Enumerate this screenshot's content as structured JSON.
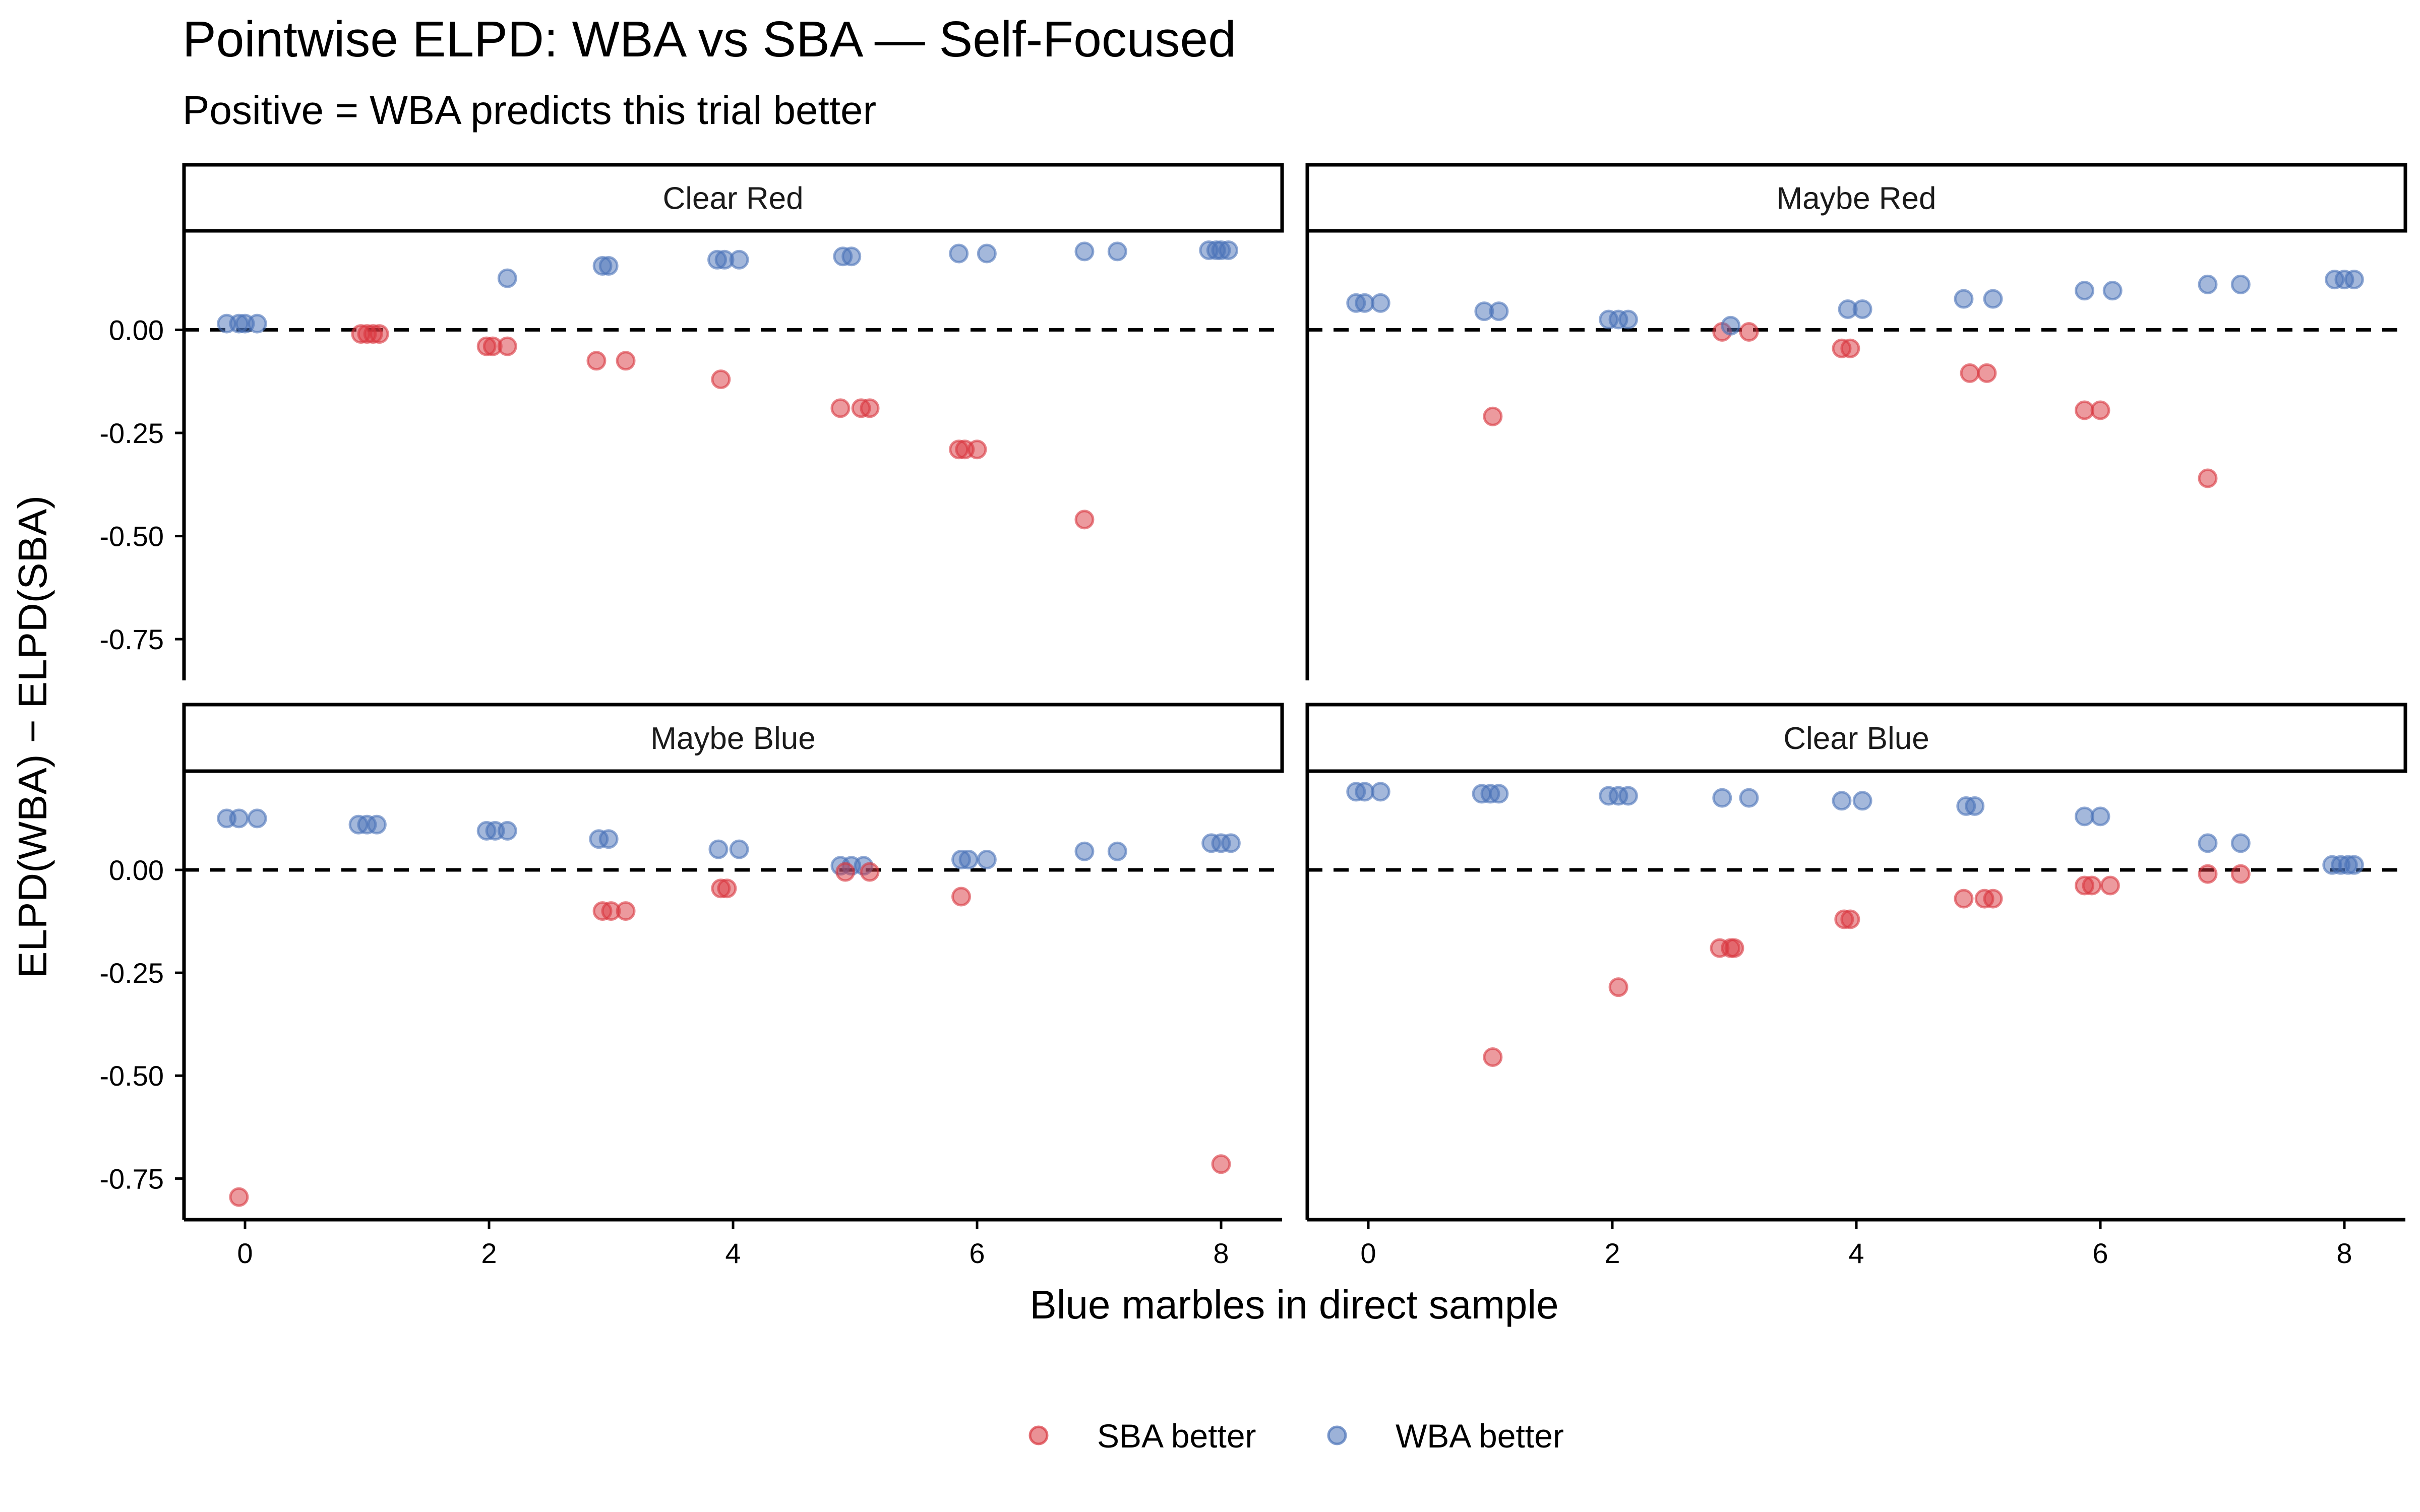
{
  "chart_data": {
    "type": "scatter",
    "title": "Pointwise ELPD: WBA vs SBA — Self-Focused",
    "subtitle": "Positive = WBA predicts this trial better",
    "xlabel": "Blue marbles in direct sample",
    "ylabel": "ELPD(WBA) − ELPD(SBA)",
    "xlim": [
      -0.5,
      8.5
    ],
    "ylim": [
      -0.85,
      0.24
    ],
    "x_ticks": [
      0,
      2,
      4,
      6,
      8
    ],
    "x_tick_labels": [
      "0",
      "2",
      "4",
      "6",
      "8"
    ],
    "y_ticks": [
      0,
      -0.25,
      -0.5,
      -0.75
    ],
    "y_tick_labels": [
      "0.00",
      "-0.25",
      "-0.50",
      "-0.75"
    ],
    "reference_line": {
      "y": 0,
      "style": "dashed"
    },
    "grid": false,
    "legend": {
      "position": "bottom",
      "entries": [
        {
          "label": "SBA better",
          "color": "#d62728"
        },
        {
          "label": "WBA better",
          "color": "#4472c4"
        }
      ]
    },
    "colors": {
      "SBA better": "#d9363e",
      "WBA better": "#4a72b8"
    },
    "panels": [
      {
        "name": "Clear Red",
        "points": [
          {
            "x": -0.15,
            "y": 0.015,
            "g": "WBA better"
          },
          {
            "x": -0.05,
            "y": 0.015,
            "g": "WBA better"
          },
          {
            "x": 0.0,
            "y": 0.015,
            "g": "WBA better"
          },
          {
            "x": 0.1,
            "y": 0.015,
            "g": "WBA better"
          },
          {
            "x": 0.95,
            "y": -0.01,
            "g": "SBA better"
          },
          {
            "x": 1.0,
            "y": -0.01,
            "g": "SBA better"
          },
          {
            "x": 1.05,
            "y": -0.01,
            "g": "SBA better"
          },
          {
            "x": 1.1,
            "y": -0.01,
            "g": "SBA better"
          },
          {
            "x": 1.98,
            "y": -0.04,
            "g": "SBA better"
          },
          {
            "x": 2.03,
            "y": -0.04,
            "g": "SBA better"
          },
          {
            "x": 2.15,
            "y": -0.04,
            "g": "SBA better"
          },
          {
            "x": 2.15,
            "y": 0.125,
            "g": "WBA better"
          },
          {
            "x": 2.88,
            "y": -0.075,
            "g": "SBA better"
          },
          {
            "x": 3.12,
            "y": -0.075,
            "g": "SBA better"
          },
          {
            "x": 2.93,
            "y": 0.155,
            "g": "WBA better"
          },
          {
            "x": 2.98,
            "y": 0.155,
            "g": "WBA better"
          },
          {
            "x": 3.9,
            "y": -0.12,
            "g": "SBA better"
          },
          {
            "x": 3.87,
            "y": 0.17,
            "g": "WBA better"
          },
          {
            "x": 3.93,
            "y": 0.17,
            "g": "WBA better"
          },
          {
            "x": 4.05,
            "y": 0.17,
            "g": "WBA better"
          },
          {
            "x": 4.88,
            "y": -0.19,
            "g": "SBA better"
          },
          {
            "x": 5.05,
            "y": -0.19,
            "g": "SBA better"
          },
          {
            "x": 5.12,
            "y": -0.19,
            "g": "SBA better"
          },
          {
            "x": 4.9,
            "y": 0.178,
            "g": "WBA better"
          },
          {
            "x": 4.97,
            "y": 0.178,
            "g": "WBA better"
          },
          {
            "x": 5.85,
            "y": -0.29,
            "g": "SBA better"
          },
          {
            "x": 5.9,
            "y": -0.29,
            "g": "SBA better"
          },
          {
            "x": 6.0,
            "y": -0.29,
            "g": "SBA better"
          },
          {
            "x": 5.85,
            "y": 0.185,
            "g": "WBA better"
          },
          {
            "x": 6.08,
            "y": 0.185,
            "g": "WBA better"
          },
          {
            "x": 6.88,
            "y": -0.46,
            "g": "SBA better"
          },
          {
            "x": 6.88,
            "y": 0.19,
            "g": "WBA better"
          },
          {
            "x": 7.15,
            "y": 0.19,
            "g": "WBA better"
          },
          {
            "x": 7.9,
            "y": 0.193,
            "g": "WBA better"
          },
          {
            "x": 7.96,
            "y": 0.193,
            "g": "WBA better"
          },
          {
            "x": 8.0,
            "y": 0.193,
            "g": "WBA better"
          },
          {
            "x": 8.06,
            "y": 0.193,
            "g": "WBA better"
          }
        ]
      },
      {
        "name": "Maybe Red",
        "points": [
          {
            "x": -0.1,
            "y": 0.065,
            "g": "WBA better"
          },
          {
            "x": -0.03,
            "y": 0.065,
            "g": "WBA better"
          },
          {
            "x": 0.1,
            "y": 0.065,
            "g": "WBA better"
          },
          {
            "x": 0.95,
            "y": 0.045,
            "g": "WBA better"
          },
          {
            "x": 1.07,
            "y": 0.045,
            "g": "WBA better"
          },
          {
            "x": 1.02,
            "y": -0.21,
            "g": "SBA better"
          },
          {
            "x": 1.97,
            "y": 0.025,
            "g": "WBA better"
          },
          {
            "x": 2.05,
            "y": 0.025,
            "g": "WBA better"
          },
          {
            "x": 2.13,
            "y": 0.025,
            "g": "WBA better"
          },
          {
            "x": 2.9,
            "y": -0.005,
            "g": "SBA better"
          },
          {
            "x": 2.97,
            "y": 0.01,
            "g": "WBA better"
          },
          {
            "x": 3.12,
            "y": -0.005,
            "g": "SBA better"
          },
          {
            "x": 3.88,
            "y": -0.045,
            "g": "SBA better"
          },
          {
            "x": 3.95,
            "y": -0.045,
            "g": "SBA better"
          },
          {
            "x": 3.93,
            "y": 0.05,
            "g": "WBA better"
          },
          {
            "x": 4.05,
            "y": 0.05,
            "g": "WBA better"
          },
          {
            "x": 4.88,
            "y": 0.075,
            "g": "WBA better"
          },
          {
            "x": 5.12,
            "y": 0.075,
            "g": "WBA better"
          },
          {
            "x": 4.93,
            "y": -0.105,
            "g": "SBA better"
          },
          {
            "x": 5.07,
            "y": -0.105,
            "g": "SBA better"
          },
          {
            "x": 5.87,
            "y": 0.095,
            "g": "WBA better"
          },
          {
            "x": 6.1,
            "y": 0.095,
            "g": "WBA better"
          },
          {
            "x": 5.87,
            "y": -0.195,
            "g": "SBA better"
          },
          {
            "x": 6.0,
            "y": -0.195,
            "g": "SBA better"
          },
          {
            "x": 6.88,
            "y": 0.11,
            "g": "WBA better"
          },
          {
            "x": 7.15,
            "y": 0.11,
            "g": "WBA better"
          },
          {
            "x": 6.88,
            "y": -0.36,
            "g": "SBA better"
          },
          {
            "x": 7.92,
            "y": 0.122,
            "g": "WBA better"
          },
          {
            "x": 8.0,
            "y": 0.122,
            "g": "WBA better"
          },
          {
            "x": 8.08,
            "y": 0.122,
            "g": "WBA better"
          }
        ]
      },
      {
        "name": "Maybe Blue",
        "points": [
          {
            "x": -0.15,
            "y": 0.125,
            "g": "WBA better"
          },
          {
            "x": -0.05,
            "y": 0.125,
            "g": "WBA better"
          },
          {
            "x": 0.1,
            "y": 0.125,
            "g": "WBA better"
          },
          {
            "x": -0.05,
            "y": -0.795,
            "g": "SBA better"
          },
          {
            "x": 0.93,
            "y": 0.11,
            "g": "WBA better"
          },
          {
            "x": 1.0,
            "y": 0.11,
            "g": "WBA better"
          },
          {
            "x": 1.08,
            "y": 0.11,
            "g": "WBA better"
          },
          {
            "x": 1.98,
            "y": 0.095,
            "g": "WBA better"
          },
          {
            "x": 2.05,
            "y": 0.095,
            "g": "WBA better"
          },
          {
            "x": 2.15,
            "y": 0.095,
            "g": "WBA better"
          },
          {
            "x": 2.9,
            "y": 0.075,
            "g": "WBA better"
          },
          {
            "x": 2.98,
            "y": 0.075,
            "g": "WBA better"
          },
          {
            "x": 2.93,
            "y": -0.1,
            "g": "SBA better"
          },
          {
            "x": 3.0,
            "y": -0.1,
            "g": "SBA better"
          },
          {
            "x": 3.12,
            "y": -0.1,
            "g": "SBA better"
          },
          {
            "x": 3.88,
            "y": 0.05,
            "g": "WBA better"
          },
          {
            "x": 4.05,
            "y": 0.05,
            "g": "WBA better"
          },
          {
            "x": 3.9,
            "y": -0.045,
            "g": "SBA better"
          },
          {
            "x": 3.95,
            "y": -0.045,
            "g": "SBA better"
          },
          {
            "x": 4.88,
            "y": 0.01,
            "g": "WBA better"
          },
          {
            "x": 4.97,
            "y": 0.01,
            "g": "WBA better"
          },
          {
            "x": 5.07,
            "y": 0.01,
            "g": "WBA better"
          },
          {
            "x": 4.92,
            "y": -0.005,
            "g": "SBA better"
          },
          {
            "x": 5.12,
            "y": -0.005,
            "g": "SBA better"
          },
          {
            "x": 5.87,
            "y": 0.025,
            "g": "WBA better"
          },
          {
            "x": 6.08,
            "y": 0.025,
            "g": "WBA better"
          },
          {
            "x": 5.93,
            "y": 0.025,
            "g": "WBA better"
          },
          {
            "x": 5.87,
            "y": -0.065,
            "g": "SBA better"
          },
          {
            "x": 6.88,
            "y": 0.045,
            "g": "WBA better"
          },
          {
            "x": 7.15,
            "y": 0.045,
            "g": "WBA better"
          },
          {
            "x": 7.92,
            "y": 0.065,
            "g": "WBA better"
          },
          {
            "x": 8.0,
            "y": 0.065,
            "g": "WBA better"
          },
          {
            "x": 8.08,
            "y": 0.065,
            "g": "WBA better"
          },
          {
            "x": 8.0,
            "y": -0.715,
            "g": "SBA better"
          }
        ]
      },
      {
        "name": "Clear Blue",
        "points": [
          {
            "x": -0.1,
            "y": 0.19,
            "g": "WBA better"
          },
          {
            "x": -0.03,
            "y": 0.19,
            "g": "WBA better"
          },
          {
            "x": 0.1,
            "y": 0.19,
            "g": "WBA better"
          },
          {
            "x": 0.93,
            "y": 0.185,
            "g": "WBA better"
          },
          {
            "x": 1.0,
            "y": 0.185,
            "g": "WBA better"
          },
          {
            "x": 1.07,
            "y": 0.185,
            "g": "WBA better"
          },
          {
            "x": 1.02,
            "y": -0.455,
            "g": "SBA better"
          },
          {
            "x": 1.97,
            "y": 0.18,
            "g": "WBA better"
          },
          {
            "x": 2.05,
            "y": 0.18,
            "g": "WBA better"
          },
          {
            "x": 2.13,
            "y": 0.18,
            "g": "WBA better"
          },
          {
            "x": 2.05,
            "y": -0.285,
            "g": "SBA better"
          },
          {
            "x": 2.9,
            "y": 0.175,
            "g": "WBA better"
          },
          {
            "x": 3.12,
            "y": 0.175,
            "g": "WBA better"
          },
          {
            "x": 2.88,
            "y": -0.19,
            "g": "SBA better"
          },
          {
            "x": 2.97,
            "y": -0.19,
            "g": "SBA better"
          },
          {
            "x": 3.0,
            "y": -0.19,
            "g": "SBA better"
          },
          {
            "x": 3.88,
            "y": 0.168,
            "g": "WBA better"
          },
          {
            "x": 4.05,
            "y": 0.168,
            "g": "WBA better"
          },
          {
            "x": 3.9,
            "y": -0.12,
            "g": "SBA better"
          },
          {
            "x": 3.95,
            "y": -0.12,
            "g": "SBA better"
          },
          {
            "x": 4.9,
            "y": 0.155,
            "g": "WBA better"
          },
          {
            "x": 4.97,
            "y": 0.155,
            "g": "WBA better"
          },
          {
            "x": 4.88,
            "y": -0.07,
            "g": "SBA better"
          },
          {
            "x": 5.05,
            "y": -0.07,
            "g": "SBA better"
          },
          {
            "x": 5.12,
            "y": -0.07,
            "g": "SBA better"
          },
          {
            "x": 5.87,
            "y": 0.13,
            "g": "WBA better"
          },
          {
            "x": 6.0,
            "y": 0.13,
            "g": "WBA better"
          },
          {
            "x": 5.87,
            "y": -0.038,
            "g": "SBA better"
          },
          {
            "x": 5.93,
            "y": -0.038,
            "g": "SBA better"
          },
          {
            "x": 6.08,
            "y": -0.038,
            "g": "SBA better"
          },
          {
            "x": 6.88,
            "y": 0.065,
            "g": "WBA better"
          },
          {
            "x": 7.15,
            "y": 0.065,
            "g": "WBA better"
          },
          {
            "x": 6.88,
            "y": -0.01,
            "g": "SBA better"
          },
          {
            "x": 7.15,
            "y": -0.01,
            "g": "SBA better"
          },
          {
            "x": 7.9,
            "y": 0.012,
            "g": "WBA better"
          },
          {
            "x": 7.97,
            "y": 0.012,
            "g": "WBA better"
          },
          {
            "x": 8.03,
            "y": 0.012,
            "g": "WBA better"
          },
          {
            "x": 8.08,
            "y": 0.012,
            "g": "WBA better"
          }
        ]
      }
    ]
  }
}
